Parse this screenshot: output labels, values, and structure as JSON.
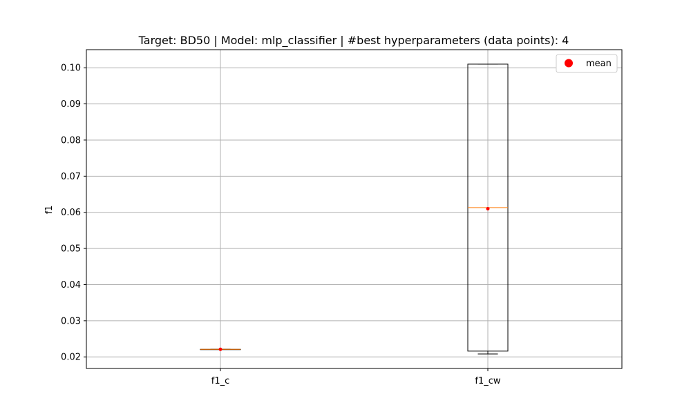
{
  "chart_data": {
    "type": "box",
    "title": "Target: BD50 | Model: mlp_classifier | #best hyperparameters (data points): 4",
    "xlabel": "",
    "ylabel": "f1",
    "categories": [
      "f1_c",
      "f1_cw"
    ],
    "ylim": [
      0.0168,
      0.105
    ],
    "yticks": [
      0.02,
      0.03,
      0.04,
      0.05,
      0.06,
      0.07,
      0.08,
      0.09,
      0.1
    ],
    "ytick_labels": [
      "0.02",
      "0.03",
      "0.04",
      "0.05",
      "0.06",
      "0.07",
      "0.08",
      "0.09",
      "0.10"
    ],
    "grid": true,
    "boxes": [
      {
        "category": "f1_c",
        "q1": 0.0221,
        "median": 0.0221,
        "q3": 0.0221,
        "whisker_low": 0.0221,
        "whisker_high": 0.0221,
        "mean": 0.0221
      },
      {
        "category": "f1_cw",
        "q1": 0.0216,
        "median": 0.0613,
        "q3": 0.101,
        "whisker_low": 0.0208,
        "whisker_high": 0.101,
        "mean": 0.061
      }
    ],
    "legend": {
      "entries": [
        "mean"
      ],
      "placement": "top-right"
    },
    "colors": {
      "box": "#000000",
      "median": "#ff7f0e",
      "mean": "#ff0000",
      "grid": "#b0b0b0"
    }
  }
}
